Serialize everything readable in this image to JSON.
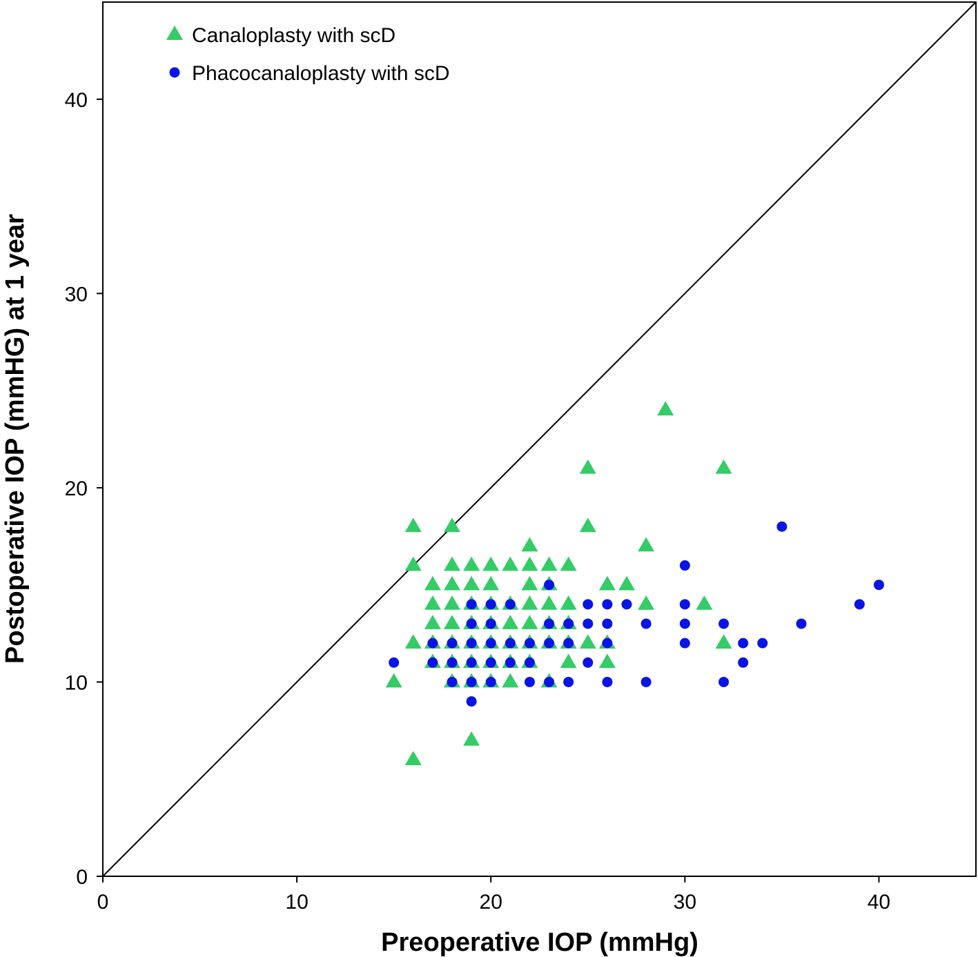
{
  "chart_data": {
    "type": "scatter",
    "xlabel": "Preoperative IOP (mmHg)",
    "ylabel": "Postoperative IOP (mmHG) at 1 year",
    "xlim": [
      0,
      45
    ],
    "ylim": [
      0,
      45
    ],
    "xticks": [
      0,
      10,
      20,
      30,
      40
    ],
    "yticks": [
      0,
      10,
      20,
      30,
      40
    ],
    "x_tick_labels": [
      "0",
      "10",
      "20",
      "30",
      "40"
    ],
    "y_tick_labels": [
      "0",
      "10",
      "20",
      "30",
      "40"
    ],
    "grid": false,
    "legend_position": "top-left",
    "reference_line": "y = x",
    "series": [
      {
        "name": "Canaloplasty with scD",
        "marker": "triangle",
        "color": "#33cc66",
        "points": [
          [
            15,
            10
          ],
          [
            16,
            18
          ],
          [
            16,
            16
          ],
          [
            16,
            12
          ],
          [
            16,
            6
          ],
          [
            17,
            15
          ],
          [
            17,
            14
          ],
          [
            17,
            13
          ],
          [
            17,
            12
          ],
          [
            17,
            11
          ],
          [
            18,
            18
          ],
          [
            18,
            16
          ],
          [
            18,
            15
          ],
          [
            18,
            14
          ],
          [
            18,
            13
          ],
          [
            18,
            12
          ],
          [
            18,
            11
          ],
          [
            18,
            10
          ],
          [
            19,
            16
          ],
          [
            19,
            15
          ],
          [
            19,
            14
          ],
          [
            19,
            13
          ],
          [
            19,
            12
          ],
          [
            19,
            11
          ],
          [
            19,
            10
          ],
          [
            19,
            7
          ],
          [
            20,
            16
          ],
          [
            20,
            15
          ],
          [
            20,
            14
          ],
          [
            20,
            13
          ],
          [
            20,
            12
          ],
          [
            20,
            11
          ],
          [
            20,
            10
          ],
          [
            21,
            16
          ],
          [
            21,
            14
          ],
          [
            21,
            13
          ],
          [
            21,
            12
          ],
          [
            21,
            11
          ],
          [
            21,
            10
          ],
          [
            22,
            17
          ],
          [
            22,
            16
          ],
          [
            22,
            15
          ],
          [
            22,
            14
          ],
          [
            22,
            13
          ],
          [
            22,
            12
          ],
          [
            22,
            11
          ],
          [
            23,
            16
          ],
          [
            23,
            15
          ],
          [
            23,
            14
          ],
          [
            23,
            13
          ],
          [
            23,
            12
          ],
          [
            23,
            10
          ],
          [
            24,
            16
          ],
          [
            24,
            14
          ],
          [
            24,
            13
          ],
          [
            24,
            12
          ],
          [
            24,
            11
          ],
          [
            25,
            21
          ],
          [
            25,
            18
          ],
          [
            25,
            12
          ],
          [
            26,
            15
          ],
          [
            26,
            12
          ],
          [
            26,
            11
          ],
          [
            27,
            15
          ],
          [
            28,
            17
          ],
          [
            28,
            14
          ],
          [
            29,
            24
          ],
          [
            31,
            14
          ],
          [
            32,
            21
          ],
          [
            32,
            12
          ]
        ]
      },
      {
        "name": "Phacocanaloplasty with scD",
        "marker": "circle",
        "color": "#0a14e6",
        "points": [
          [
            15,
            11
          ],
          [
            17,
            12
          ],
          [
            17,
            11
          ],
          [
            18,
            12
          ],
          [
            18,
            11
          ],
          [
            18,
            10
          ],
          [
            19,
            14
          ],
          [
            19,
            13
          ],
          [
            19,
            12
          ],
          [
            19,
            11
          ],
          [
            19,
            10
          ],
          [
            19,
            9
          ],
          [
            20,
            14
          ],
          [
            20,
            13
          ],
          [
            20,
            12
          ],
          [
            20,
            11
          ],
          [
            20,
            10
          ],
          [
            21,
            14
          ],
          [
            21,
            12
          ],
          [
            21,
            11
          ],
          [
            22,
            12
          ],
          [
            22,
            11
          ],
          [
            22,
            10
          ],
          [
            23,
            15
          ],
          [
            23,
            13
          ],
          [
            23,
            12
          ],
          [
            23,
            10
          ],
          [
            24,
            13
          ],
          [
            24,
            12
          ],
          [
            24,
            10
          ],
          [
            25,
            14
          ],
          [
            25,
            13
          ],
          [
            25,
            11
          ],
          [
            26,
            14
          ],
          [
            26,
            13
          ],
          [
            26,
            12
          ],
          [
            26,
            10
          ],
          [
            27,
            14
          ],
          [
            28,
            13
          ],
          [
            28,
            10
          ],
          [
            30,
            16
          ],
          [
            30,
            14
          ],
          [
            30,
            13
          ],
          [
            30,
            12
          ],
          [
            32,
            13
          ],
          [
            32,
            10
          ],
          [
            33,
            12
          ],
          [
            33,
            11
          ],
          [
            34,
            12
          ],
          [
            35,
            18
          ],
          [
            36,
            13
          ],
          [
            39,
            14
          ],
          [
            40,
            15
          ]
        ]
      }
    ]
  }
}
